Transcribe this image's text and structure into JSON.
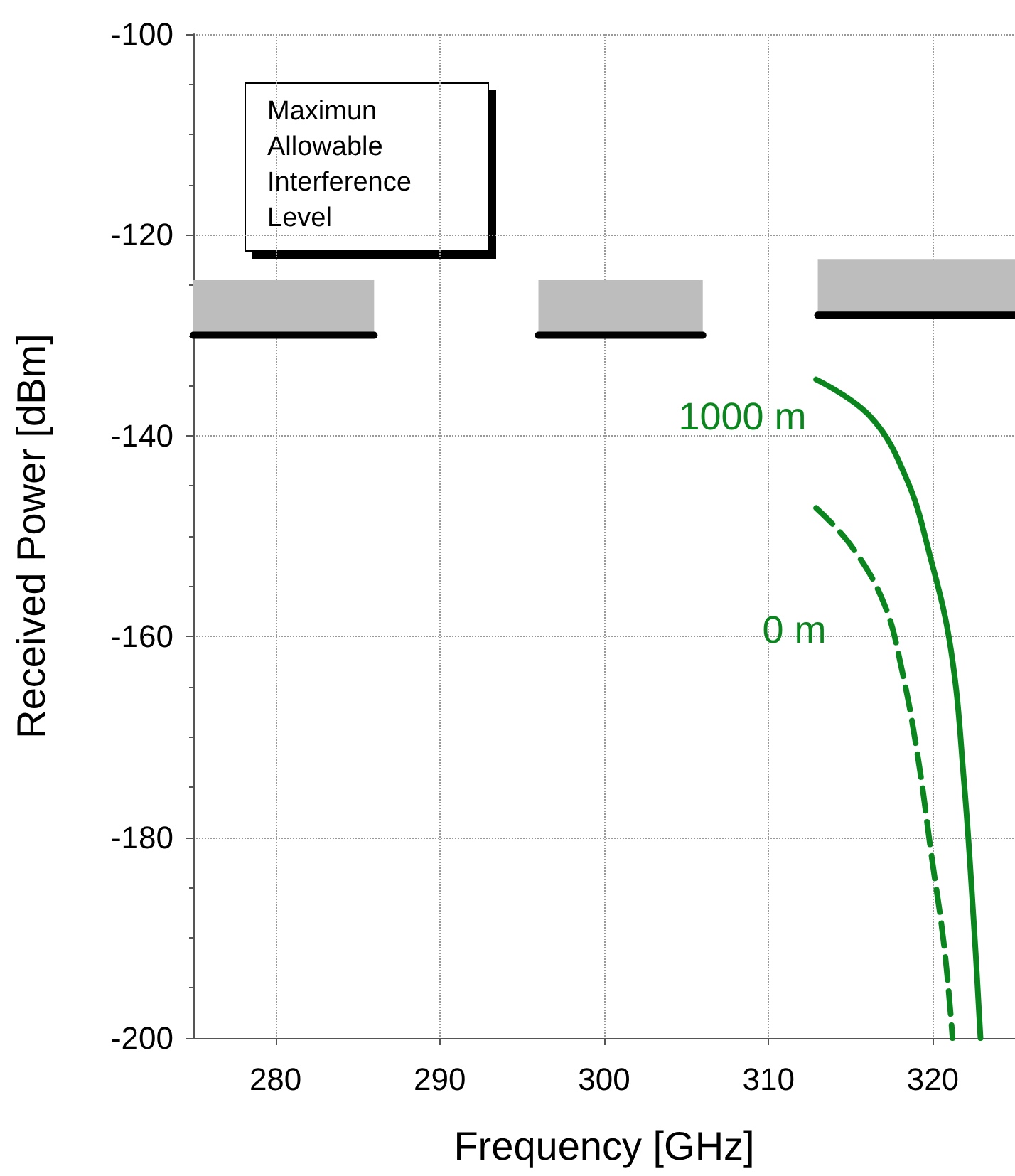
{
  "chart_data": {
    "type": "line",
    "xlabel": "Frequency [GHz]",
    "ylabel": "Received Power [dBm]",
    "xlim": [
      275,
      325
    ],
    "xticks": [
      280,
      290,
      300,
      310,
      320
    ],
    "ylim": [
      -200,
      -100
    ],
    "yticks": [
      -200,
      -180,
      -160,
      -140,
      -120,
      -100
    ],
    "grid": true,
    "legend": false,
    "annotations": [
      "Maximun\nAllowable\nInterference\nLevel"
    ],
    "series": [
      {
        "color": "#000000",
        "x": [
          275,
          286
        ],
        "values": [
          -130,
          -130
        ],
        "lower": [
          -130,
          -130
        ],
        "upper": [
          -124.5,
          -124.5
        ]
      },
      {
        "color": "#000000",
        "x": [
          296,
          306
        ],
        "values": [
          -130,
          -130
        ],
        "lower": [
          -130,
          -130
        ],
        "upper": [
          -124.5,
          -124.5
        ]
      },
      {
        "color": "#000000",
        "x": [
          313,
          325
        ],
        "values": [
          -128,
          -128
        ],
        "lower": [
          -128,
          -128
        ],
        "upper": [
          -122.4,
          -122.4
        ]
      },
      {
        "name": "1000 m",
        "color": "#0b861f",
        "line_style": "solid",
        "x": [
          312.9,
          316.2,
          318.4,
          319.8,
          321.1,
          321.9,
          322.5,
          322.9
        ],
        "values": [
          -134.4,
          -138.1,
          -144.3,
          -151.8,
          -161.3,
          -174.5,
          -188.7,
          -200
        ]
      },
      {
        "name": "0 m",
        "color": "#0b861f",
        "line_style": "dashed",
        "x": [
          312.9,
          315.0,
          317.0,
          318.1,
          319.1,
          319.9,
          320.7,
          321.2
        ],
        "values": [
          -147.2,
          -150.9,
          -156.6,
          -163.2,
          -172.1,
          -181.6,
          -191.0,
          -200
        ]
      }
    ]
  }
}
